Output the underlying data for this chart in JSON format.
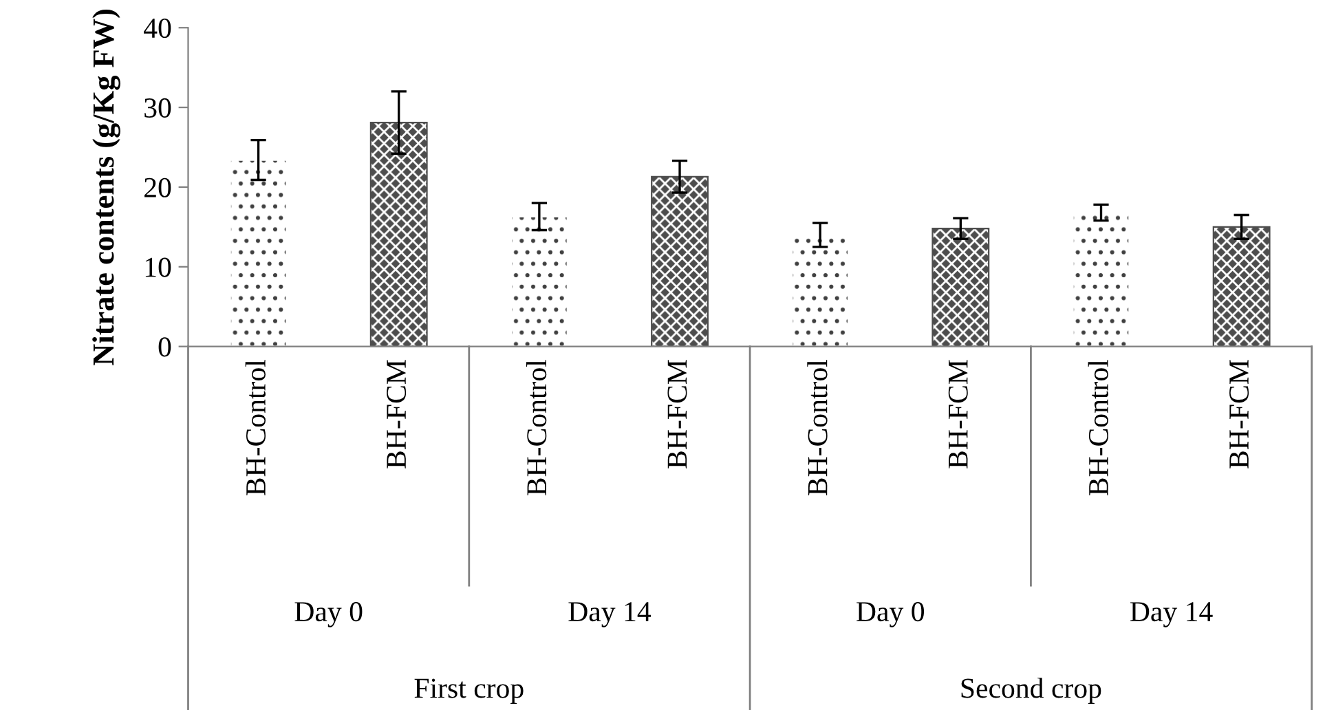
{
  "chart_data": {
    "type": "bar",
    "ylabel": "Nitrate contents (g/Kg FW)",
    "categories": [
      "BH-Control",
      "BH-FCM",
      "BH-Control",
      "BH-FCM",
      "BH-Control",
      "BH-FCM",
      "BH-Control",
      "BH-FCM"
    ],
    "values": [
      23.4,
      28.1,
      16.3,
      21.3,
      14.0,
      14.8,
      16.8,
      15.0
    ],
    "errors": [
      2.5,
      3.9,
      1.7,
      2.0,
      1.5,
      1.3,
      1.0,
      1.5
    ],
    "colors": [
      "#ffffff",
      "#4d4d4d",
      "#ffffff",
      "#4d4d4d",
      "#ffffff",
      "#4d4d4d",
      "#ffffff",
      "#4d4d4d"
    ],
    "annotations": [
      "Day 0",
      "Day 14",
      "Day 0",
      "Day 14",
      "First crop",
      "Second crop"
    ],
    "ylim": [
      0,
      40
    ],
    "yticks": [
      0,
      10,
      20,
      30,
      40
    ],
    "grid": false
  }
}
